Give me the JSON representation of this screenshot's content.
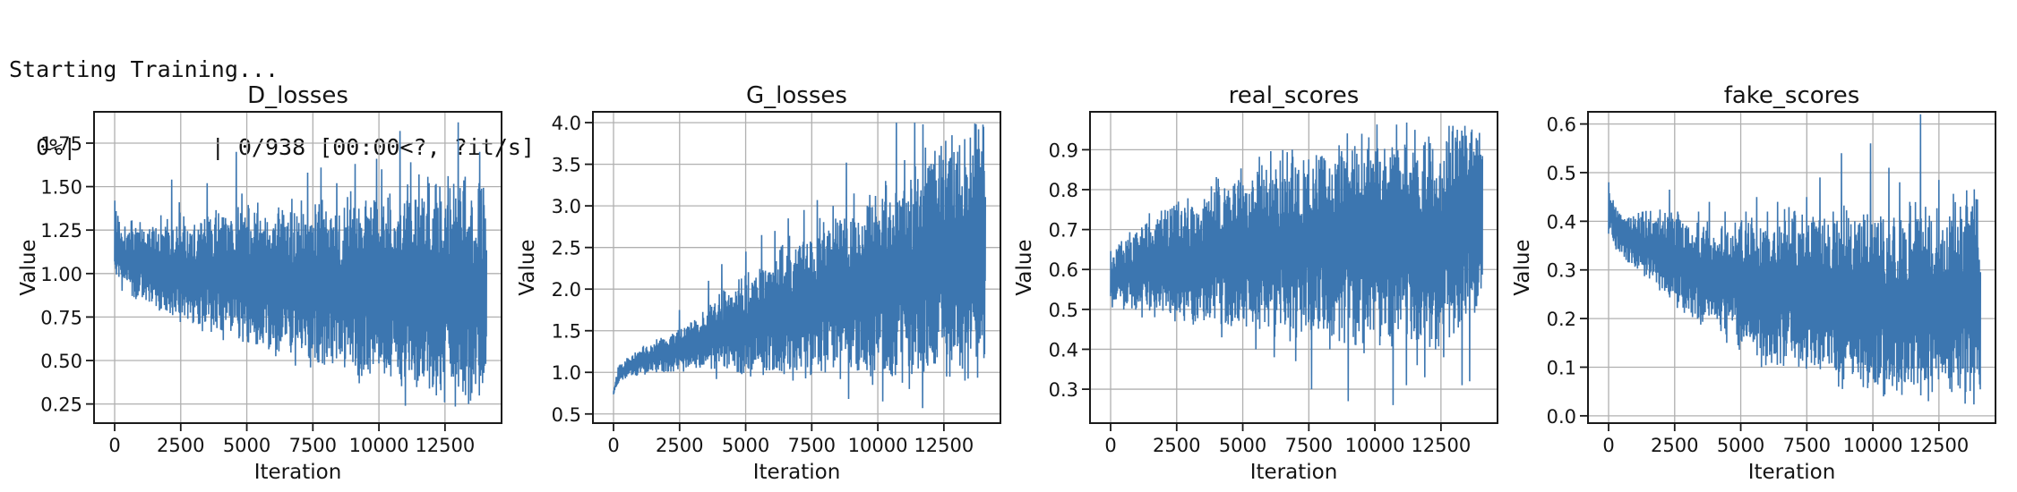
{
  "console": {
    "line1": "Starting Training...",
    "line2": "  0%|          | 0/938 [00:00<?, ?it/s]"
  },
  "figure": {
    "line_color": "#3c76b0",
    "grid_color": "#b0b0b0",
    "spine_color": "#1a1a1a",
    "text_color": "#141414",
    "background": "#ffffff"
  },
  "chart_data": [
    {
      "type": "line",
      "title": "D_losses",
      "xlabel": "Iteration",
      "ylabel": "Value",
      "xlim": [
        -780,
        14640
      ],
      "ylim": [
        0.14,
        1.93
      ],
      "x_max_iteration": 14070,
      "xticks": [
        0,
        2500,
        5000,
        7500,
        10000,
        12500
      ],
      "xtick_labels": [
        "0",
        "2500",
        "5000",
        "7500",
        "10000",
        "12500"
      ],
      "yticks": [
        0.25,
        0.5,
        0.75,
        1.0,
        1.25,
        1.5,
        1.75
      ],
      "ytick_labels": [
        "0.25",
        "0.50",
        "0.75",
        "1.00",
        "1.25",
        "1.50",
        "1.75"
      ],
      "grid": true,
      "legend": null,
      "seed": 11,
      "series_summary": {
        "description": "Discriminator loss per iteration: noisy band; lower envelope decays from ~0.97 to ~0.28, upper envelope ~1.3-1.45 with tall spikes up to 1.87",
        "envelope": [
          [
            0,
            0.97,
            1.4
          ],
          [
            300,
            0.9,
            1.3
          ],
          [
            1000,
            0.84,
            1.27
          ],
          [
            2000,
            0.78,
            1.3
          ],
          [
            3000,
            0.71,
            1.31
          ],
          [
            4000,
            0.66,
            1.32
          ],
          [
            5000,
            0.61,
            1.33
          ],
          [
            6000,
            0.56,
            1.34
          ],
          [
            7000,
            0.51,
            1.36
          ],
          [
            8000,
            0.46,
            1.38
          ],
          [
            9000,
            0.43,
            1.39
          ],
          [
            10000,
            0.39,
            1.41
          ],
          [
            11000,
            0.34,
            1.43
          ],
          [
            12000,
            0.31,
            1.45
          ],
          [
            13000,
            0.29,
            1.46
          ],
          [
            14070,
            0.28,
            1.42
          ]
        ],
        "spikes": [
          [
            0,
            1.42
          ],
          [
            2150,
            1.54
          ],
          [
            2450,
            1.41
          ],
          [
            3500,
            1.52
          ],
          [
            4600,
            1.7
          ],
          [
            4800,
            1.46
          ],
          [
            5300,
            1.35
          ],
          [
            6200,
            1.38
          ],
          [
            6700,
            1.43
          ],
          [
            7300,
            1.58
          ],
          [
            7800,
            1.61
          ],
          [
            8400,
            1.52
          ],
          [
            8800,
            1.44
          ],
          [
            9100,
            1.63
          ],
          [
            9500,
            1.42
          ],
          [
            9900,
            1.66
          ],
          [
            10100,
            1.6
          ],
          [
            10400,
            1.46
          ],
          [
            10800,
            1.82
          ],
          [
            11200,
            1.64
          ],
          [
            11500,
            1.57
          ],
          [
            11900,
            1.52
          ],
          [
            12300,
            1.5
          ],
          [
            12600,
            1.56
          ],
          [
            13000,
            1.87
          ],
          [
            13200,
            1.52
          ],
          [
            13500,
            1.42
          ],
          [
            13800,
            1.7
          ]
        ],
        "dips": [
          [
            11000,
            0.24
          ],
          [
            12500,
            0.26
          ],
          [
            13400,
            0.25
          ]
        ]
      }
    },
    {
      "type": "line",
      "title": "G_losses",
      "xlabel": "Iteration",
      "ylabel": "Value",
      "xlim": [
        -780,
        14640
      ],
      "ylim": [
        0.39,
        4.13
      ],
      "x_max_iteration": 14070,
      "xticks": [
        0,
        2500,
        5000,
        7500,
        10000,
        12500
      ],
      "xtick_labels": [
        "0",
        "2500",
        "5000",
        "7500",
        "10000",
        "12500"
      ],
      "yticks": [
        0.5,
        1.0,
        1.5,
        2.0,
        2.5,
        3.0,
        3.5,
        4.0
      ],
      "ytick_labels": [
        "0.5",
        "1.0",
        "1.5",
        "2.0",
        "2.5",
        "3.0",
        "3.5",
        "4.0"
      ],
      "grid": true,
      "legend": null,
      "seed": 22,
      "series_summary": {
        "description": "Generator loss per iteration: starts ~0.75, lower envelope ~1.0, upper envelope grows from ~1.2 to ~3.8 with spikes to 4.0 and dips to ~0.57",
        "envelope": [
          [
            0,
            0.73,
            0.8
          ],
          [
            200,
            0.88,
            1.1
          ],
          [
            600,
            0.95,
            1.18
          ],
          [
            1000,
            0.98,
            1.27
          ],
          [
            2000,
            1.0,
            1.45
          ],
          [
            3000,
            1.03,
            1.62
          ],
          [
            4000,
            1.03,
            1.88
          ],
          [
            5000,
            1.0,
            2.1
          ],
          [
            6000,
            1.0,
            2.35
          ],
          [
            7000,
            1.02,
            2.6
          ],
          [
            8000,
            1.03,
            2.78
          ],
          [
            9000,
            1.0,
            2.92
          ],
          [
            10000,
            1.0,
            3.1
          ],
          [
            11000,
            1.0,
            3.3
          ],
          [
            12000,
            1.02,
            3.5
          ],
          [
            13000,
            1.0,
            3.68
          ],
          [
            14070,
            1.05,
            3.8
          ]
        ],
        "spikes": [
          [
            2500,
            1.75
          ],
          [
            3600,
            2.1
          ],
          [
            4100,
            2.3
          ],
          [
            5000,
            2.45
          ],
          [
            5600,
            2.65
          ],
          [
            6100,
            2.7
          ],
          [
            6600,
            2.85
          ],
          [
            7200,
            2.95
          ],
          [
            7700,
            3.07
          ],
          [
            8300,
            3.0
          ],
          [
            8800,
            3.52
          ],
          [
            9100,
            3.15
          ],
          [
            9600,
            3.0
          ],
          [
            9900,
            3.12
          ],
          [
            10300,
            3.3
          ],
          [
            10700,
            4.0
          ],
          [
            11000,
            3.55
          ],
          [
            11400,
            4.0
          ],
          [
            11700,
            3.98
          ],
          [
            12100,
            3.5
          ],
          [
            12400,
            3.72
          ],
          [
            12800,
            3.85
          ],
          [
            13100,
            3.6
          ],
          [
            13500,
            3.82
          ],
          [
            13800,
            3.92
          ],
          [
            14000,
            3.95
          ]
        ],
        "dips": [
          [
            3900,
            0.92
          ],
          [
            5200,
            0.95
          ],
          [
            6800,
            0.9
          ],
          [
            8900,
            0.68
          ],
          [
            9800,
            0.85
          ],
          [
            10200,
            0.65
          ],
          [
            11200,
            0.8
          ],
          [
            11700,
            0.57
          ],
          [
            12600,
            0.95
          ],
          [
            13300,
            0.9
          ]
        ]
      }
    },
    {
      "type": "line",
      "title": "real_scores",
      "xlabel": "Iteration",
      "ylabel": "Value",
      "xlim": [
        -780,
        14640
      ],
      "ylim": [
        0.215,
        0.995
      ],
      "x_max_iteration": 14070,
      "xticks": [
        0,
        2500,
        5000,
        7500,
        10000,
        12500
      ],
      "xtick_labels": [
        "0",
        "2500",
        "5000",
        "7500",
        "10000",
        "12500"
      ],
      "yticks": [
        0.3,
        0.4,
        0.5,
        0.6,
        0.7,
        0.8,
        0.9
      ],
      "ytick_labels": [
        "0.3",
        "0.4",
        "0.5",
        "0.6",
        "0.7",
        "0.8",
        "0.9"
      ],
      "grid": true,
      "legend": null,
      "seed": 33,
      "series_summary": {
        "description": "Discriminator score on real images: band grows upward; upper envelope rises ~0.64 to ~0.95, lower envelope ~0.5 to ~0.43 with deep dips to ~0.26",
        "envelope": [
          [
            0,
            0.5,
            0.64
          ],
          [
            500,
            0.5,
            0.67
          ],
          [
            1000,
            0.49,
            0.7
          ],
          [
            2000,
            0.48,
            0.74
          ],
          [
            3000,
            0.47,
            0.77
          ],
          [
            4000,
            0.47,
            0.8
          ],
          [
            5000,
            0.46,
            0.83
          ],
          [
            6000,
            0.45,
            0.86
          ],
          [
            7000,
            0.45,
            0.88
          ],
          [
            8000,
            0.44,
            0.9
          ],
          [
            9000,
            0.44,
            0.91
          ],
          [
            10000,
            0.43,
            0.92
          ],
          [
            11000,
            0.43,
            0.93
          ],
          [
            12000,
            0.43,
            0.94
          ],
          [
            13000,
            0.44,
            0.95
          ],
          [
            14070,
            0.5,
            0.95
          ]
        ],
        "spikes": [
          [
            9500,
            0.94
          ],
          [
            11500,
            0.95
          ],
          [
            12800,
            0.96
          ],
          [
            13400,
            0.96
          ]
        ],
        "dips": [
          [
            4200,
            0.43
          ],
          [
            5500,
            0.4
          ],
          [
            6200,
            0.38
          ],
          [
            6800,
            0.42
          ],
          [
            7000,
            0.37
          ],
          [
            7600,
            0.3
          ],
          [
            8300,
            0.4
          ],
          [
            9000,
            0.27
          ],
          [
            9600,
            0.39
          ],
          [
            10200,
            0.41
          ],
          [
            10700,
            0.26
          ],
          [
            11200,
            0.31
          ],
          [
            11600,
            0.36
          ],
          [
            11900,
            0.33
          ],
          [
            12300,
            0.4
          ],
          [
            12600,
            0.38
          ],
          [
            13000,
            0.44
          ],
          [
            13300,
            0.31
          ],
          [
            13600,
            0.32
          ]
        ]
      }
    },
    {
      "type": "line",
      "title": "fake_scores",
      "xlabel": "Iteration",
      "ylabel": "Value",
      "xlim": [
        -780,
        14640
      ],
      "ylim": [
        -0.015,
        0.625
      ],
      "x_max_iteration": 14070,
      "xticks": [
        0,
        2500,
        5000,
        7500,
        10000,
        12500
      ],
      "xtick_labels": [
        "0",
        "2500",
        "5000",
        "7500",
        "10000",
        "12500"
      ],
      "yticks": [
        0.0,
        0.1,
        0.2,
        0.3,
        0.4,
        0.5,
        0.6
      ],
      "ytick_labels": [
        "0.0",
        "0.1",
        "0.2",
        "0.3",
        "0.4",
        "0.5",
        "0.6"
      ],
      "grid": true,
      "legend": null,
      "seed": 44,
      "series_summary": {
        "description": "Discriminator score on fake images: starts ~0.48; lower envelope decays from ~0.37 to ~0.04, upper envelope ~0.40-0.44 with spikes to 0.62",
        "envelope": [
          [
            0,
            0.37,
            0.48
          ],
          [
            300,
            0.34,
            0.43
          ],
          [
            1000,
            0.3,
            0.41
          ],
          [
            2000,
            0.26,
            0.41
          ],
          [
            3000,
            0.21,
            0.4
          ],
          [
            4000,
            0.17,
            0.39
          ],
          [
            5000,
            0.14,
            0.4
          ],
          [
            6000,
            0.12,
            0.4
          ],
          [
            7000,
            0.1,
            0.41
          ],
          [
            8000,
            0.09,
            0.4
          ],
          [
            9000,
            0.07,
            0.4
          ],
          [
            10000,
            0.06,
            0.41
          ],
          [
            11000,
            0.05,
            0.4
          ],
          [
            12000,
            0.05,
            0.41
          ],
          [
            13000,
            0.04,
            0.42
          ],
          [
            13900,
            0.04,
            0.44
          ],
          [
            14070,
            0.05,
            0.3
          ]
        ],
        "spikes": [
          [
            0,
            0.48
          ],
          [
            1300,
            0.42
          ],
          [
            2300,
            0.465
          ],
          [
            2600,
            0.42
          ],
          [
            3400,
            0.42
          ],
          [
            3800,
            0.44
          ],
          [
            4400,
            0.42
          ],
          [
            5200,
            0.42
          ],
          [
            5600,
            0.45
          ],
          [
            6000,
            0.42
          ],
          [
            6400,
            0.44
          ],
          [
            7000,
            0.42
          ],
          [
            7500,
            0.45
          ],
          [
            8000,
            0.49
          ],
          [
            8500,
            0.42
          ],
          [
            8800,
            0.54
          ],
          [
            9300,
            0.4
          ],
          [
            9900,
            0.56
          ],
          [
            10300,
            0.41
          ],
          [
            10600,
            0.51
          ],
          [
            11000,
            0.48
          ],
          [
            11400,
            0.44
          ],
          [
            11800,
            0.62
          ],
          [
            12200,
            0.4
          ],
          [
            12500,
            0.485
          ],
          [
            12900,
            0.41
          ],
          [
            13300,
            0.43
          ],
          [
            13700,
            0.42
          ],
          [
            13950,
            0.445
          ]
        ],
        "dips": [
          [
            5800,
            0.1
          ],
          [
            8700,
            0.06
          ],
          [
            10400,
            0.04
          ],
          [
            12100,
            0.03
          ],
          [
            13500,
            0.025
          ]
        ]
      }
    }
  ]
}
